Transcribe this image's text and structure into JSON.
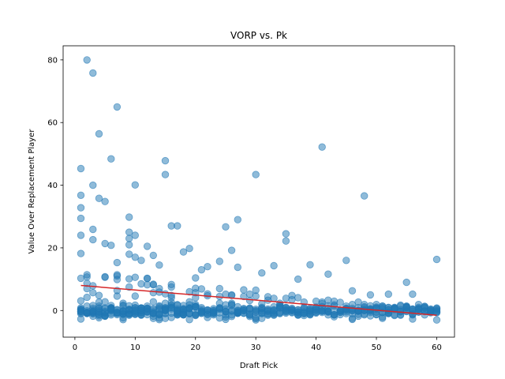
{
  "chart_data": {
    "type": "scatter",
    "title": "VORP vs. Pk",
    "xlabel": "Draft Pick",
    "ylabel": "Value Over Replacement Player",
    "xlim": [
      -1.95,
      62.95
    ],
    "ylim": [
      -8.5,
      84.5
    ],
    "xticks": [
      0,
      10,
      20,
      30,
      40,
      50,
      60
    ],
    "yticks": [
      0,
      20,
      40,
      60,
      80
    ],
    "grid": false,
    "colors": {
      "points": "#1f77b4",
      "trend": "#d62728"
    },
    "trend_line": {
      "x": [
        1,
        60
      ],
      "y": [
        8.0,
        -1.5
      ]
    },
    "highlight_points": [
      {
        "x": 2,
        "y": 80
      },
      {
        "x": 3,
        "y": 75.8
      },
      {
        "x": 4,
        "y": 56.4
      },
      {
        "x": 7,
        "y": 65
      },
      {
        "x": 6,
        "y": 48.4
      },
      {
        "x": 1,
        "y": 45.3
      },
      {
        "x": 15,
        "y": 47.8
      },
      {
        "x": 15,
        "y": 43.4
      },
      {
        "x": 41,
        "y": 52.2
      },
      {
        "x": 30,
        "y": 43.4
      },
      {
        "x": 48,
        "y": 36.6
      },
      {
        "x": 3,
        "y": 40
      },
      {
        "x": 10,
        "y": 40.1
      },
      {
        "x": 4,
        "y": 35.8
      },
      {
        "x": 5,
        "y": 34.8
      },
      {
        "x": 1,
        "y": 36.8
      },
      {
        "x": 1,
        "y": 32.8
      },
      {
        "x": 1,
        "y": 29.4
      },
      {
        "x": 9,
        "y": 29.8
      },
      {
        "x": 27,
        "y": 29
      },
      {
        "x": 16,
        "y": 27
      },
      {
        "x": 17,
        "y": 27
      },
      {
        "x": 25,
        "y": 26.7
      },
      {
        "x": 3,
        "y": 25.9
      },
      {
        "x": 9,
        "y": 25
      },
      {
        "x": 10,
        "y": 24
      },
      {
        "x": 1,
        "y": 24
      },
      {
        "x": 35,
        "y": 24.5
      },
      {
        "x": 35,
        "y": 22.2
      },
      {
        "x": 3,
        "y": 22.6
      },
      {
        "x": 5,
        "y": 21.4
      },
      {
        "x": 6,
        "y": 20.8
      },
      {
        "x": 9,
        "y": 23
      },
      {
        "x": 9,
        "y": 21
      },
      {
        "x": 12,
        "y": 20.5
      },
      {
        "x": 19,
        "y": 19.8
      },
      {
        "x": 18,
        "y": 18.7
      },
      {
        "x": 26,
        "y": 19.2
      },
      {
        "x": 1,
        "y": 18.2
      },
      {
        "x": 9,
        "y": 18
      },
      {
        "x": 10,
        "y": 17
      },
      {
        "x": 13,
        "y": 17.6
      },
      {
        "x": 45,
        "y": 16
      },
      {
        "x": 60,
        "y": 16.3
      },
      {
        "x": 11,
        "y": 16
      },
      {
        "x": 24,
        "y": 15.7
      },
      {
        "x": 7,
        "y": 15.3
      },
      {
        "x": 39,
        "y": 14.6
      },
      {
        "x": 33,
        "y": 14.3
      },
      {
        "x": 22,
        "y": 14
      },
      {
        "x": 27,
        "y": 13.8
      },
      {
        "x": 14,
        "y": 14.5
      },
      {
        "x": 21,
        "y": 13
      },
      {
        "x": 42,
        "y": 11.6
      },
      {
        "x": 31,
        "y": 12
      },
      {
        "x": 55,
        "y": 9
      },
      {
        "x": 37,
        "y": 10
      },
      {
        "x": 20,
        "y": 10.4
      },
      {
        "x": 2,
        "y": 10.7
      },
      {
        "x": 46,
        "y": 6.3
      },
      {
        "x": 52,
        "y": 5.2
      },
      {
        "x": 56,
        "y": 5.2
      },
      {
        "x": 49,
        "y": 5
      }
    ]
  }
}
